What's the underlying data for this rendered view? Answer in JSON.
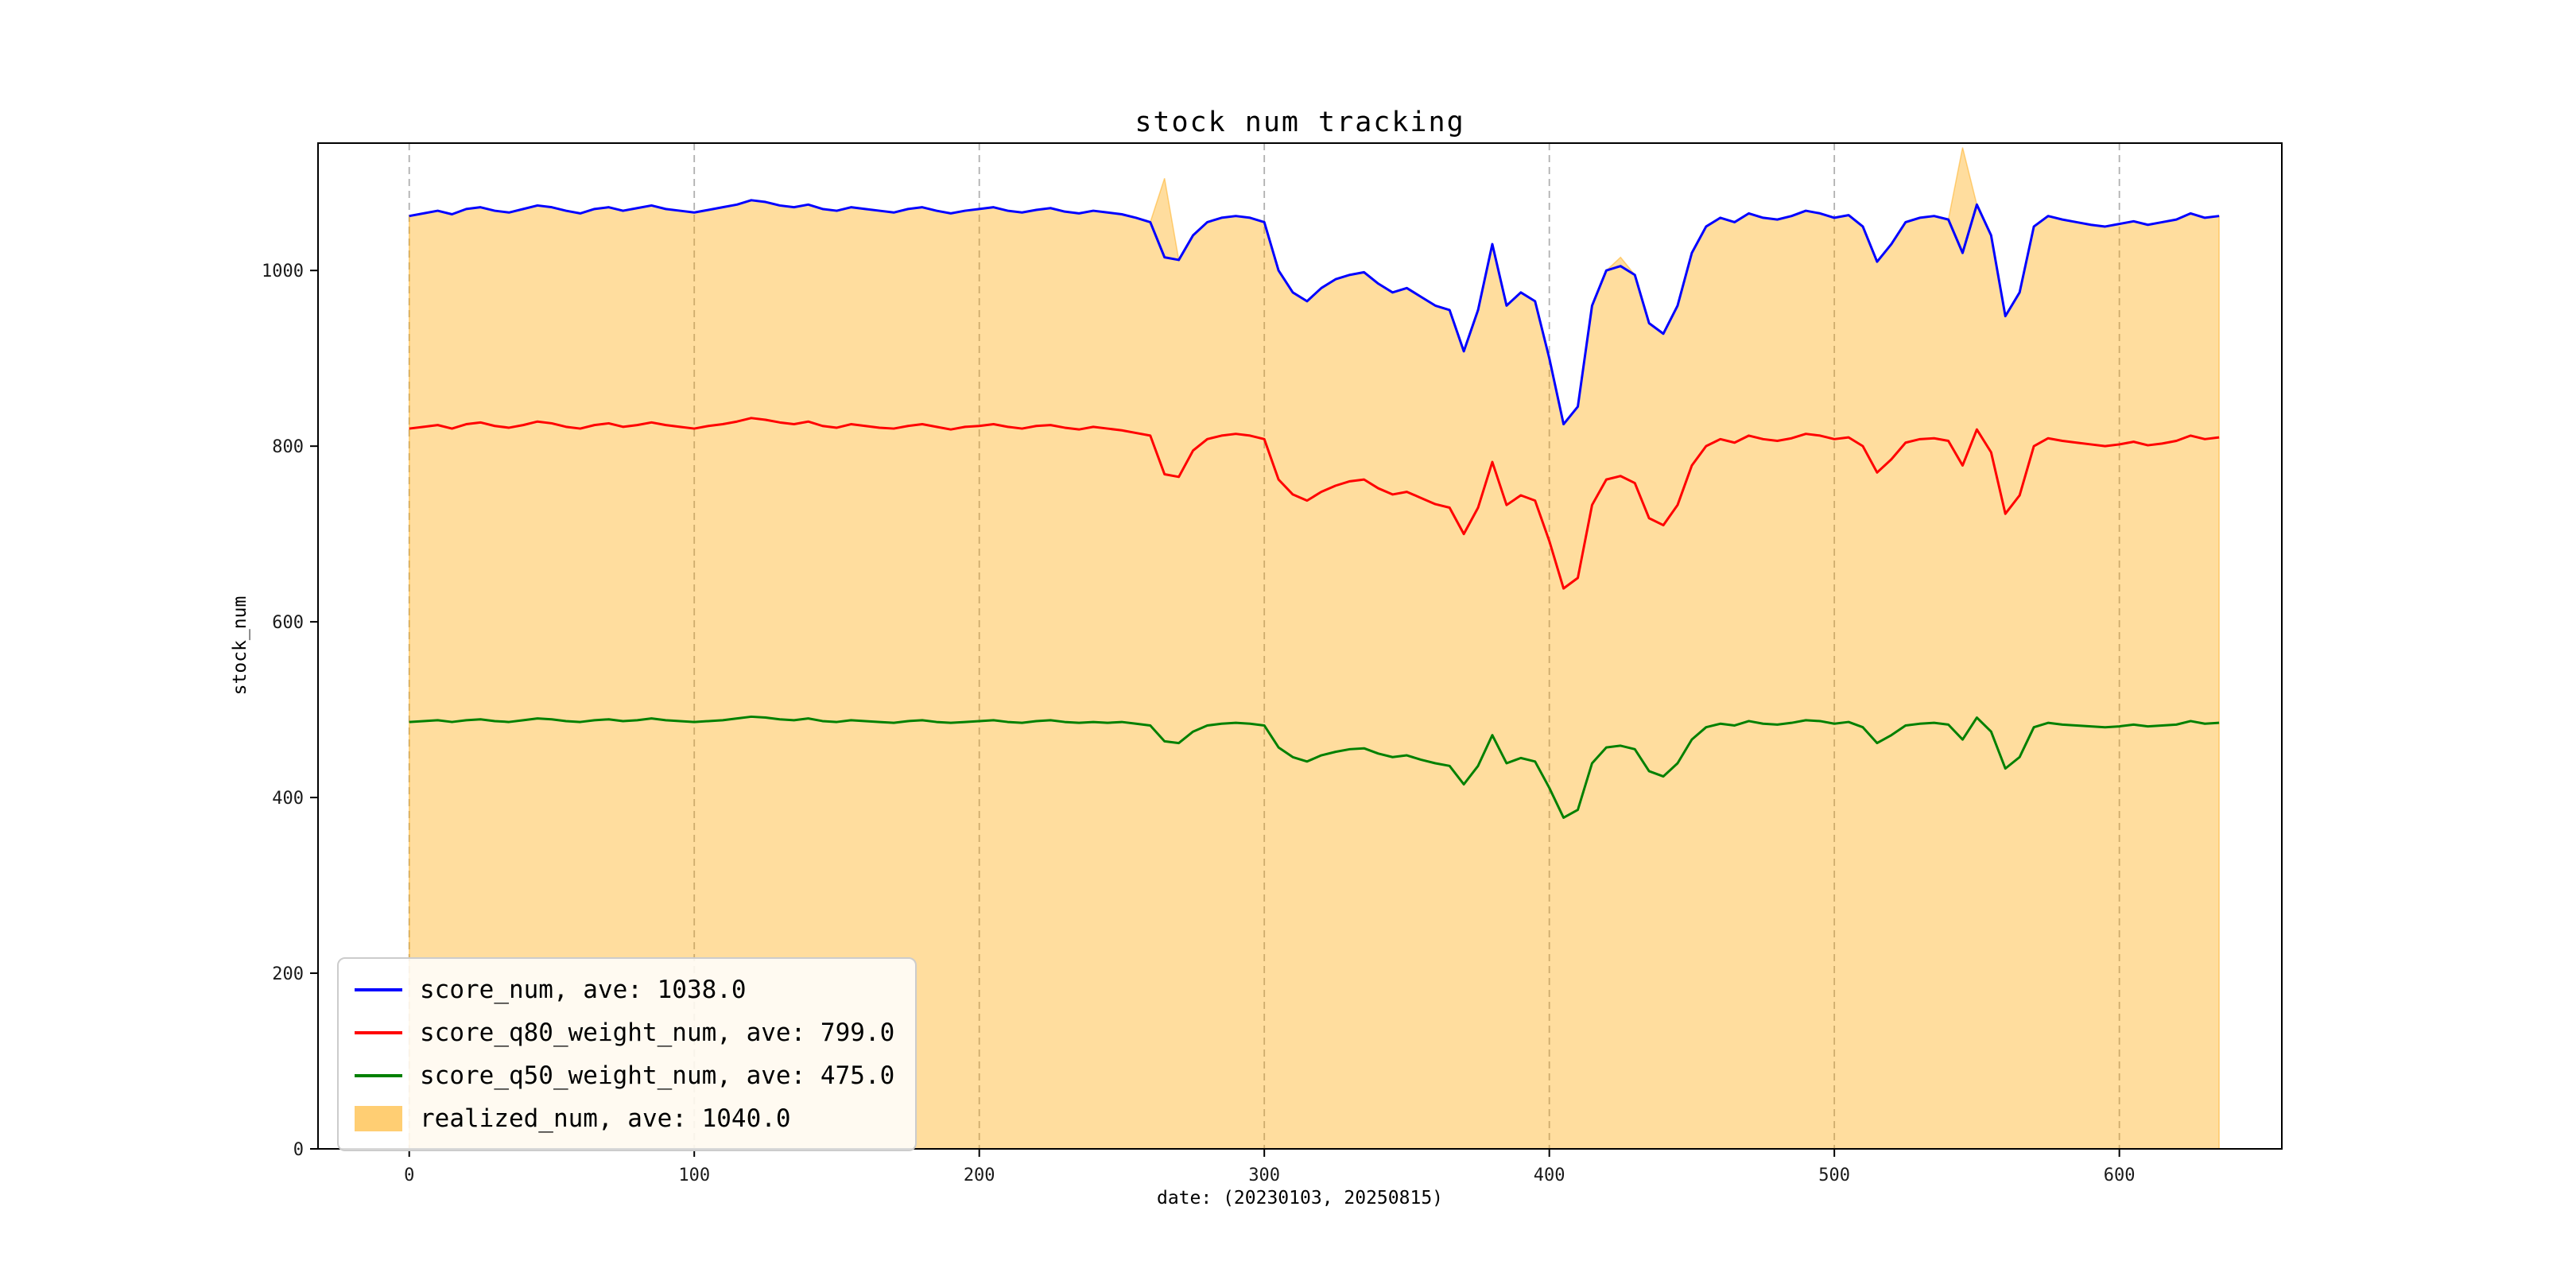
{
  "figure": {
    "background": "#ffffff"
  },
  "chart_data": {
    "type": "line",
    "title": "stock num tracking",
    "xlabel": "date: (20230103, 20250815)",
    "ylabel": "stock_num",
    "xlim": [
      -32,
      657
    ],
    "ylim": [
      0,
      1145
    ],
    "xticks": [
      0,
      100,
      200,
      300,
      400,
      500,
      600
    ],
    "yticks": [
      0,
      200,
      400,
      600,
      800,
      1000
    ],
    "grid": {
      "axis": "x",
      "style": "dashed",
      "color": "#b0b0b0"
    },
    "legend_position": "lower left",
    "x_start": 0,
    "x_step": 5,
    "series": [
      {
        "name": "score_num",
        "label": "score_num, ave: 1038.0",
        "color": "#0000ff",
        "kind": "line",
        "values": [
          1062,
          1065,
          1068,
          1064,
          1070,
          1072,
          1068,
          1066,
          1070,
          1074,
          1072,
          1068,
          1065,
          1070,
          1072,
          1068,
          1071,
          1074,
          1070,
          1068,
          1066,
          1069,
          1072,
          1075,
          1080,
          1078,
          1074,
          1072,
          1075,
          1070,
          1068,
          1072,
          1070,
          1068,
          1066,
          1070,
          1072,
          1068,
          1065,
          1068,
          1070,
          1072,
          1068,
          1066,
          1069,
          1071,
          1067,
          1065,
          1068,
          1066,
          1064,
          1060,
          1055,
          1015,
          1012,
          1040,
          1055,
          1060,
          1062,
          1060,
          1055,
          1000,
          975,
          965,
          980,
          990,
          995,
          998,
          985,
          975,
          980,
          970,
          960,
          955,
          908,
          955,
          1030,
          960,
          975,
          965,
          900,
          825,
          845,
          960,
          1000,
          1005,
          995,
          940,
          928,
          960,
          1020,
          1050,
          1060,
          1055,
          1065,
          1060,
          1058,
          1062,
          1068,
          1065,
          1060,
          1063,
          1050,
          1010,
          1030,
          1055,
          1060,
          1062,
          1058,
          1020,
          1075,
          1040,
          948,
          975,
          1050,
          1062,
          1058,
          1055,
          1052,
          1050,
          1053,
          1056,
          1052,
          1055,
          1058,
          1065,
          1060,
          1062
        ]
      },
      {
        "name": "score_q80_weight_num",
        "label": "score_q80_weight_num, ave: 799.0",
        "color": "#ff0000",
        "kind": "line",
        "values": [
          820,
          822,
          824,
          820,
          825,
          827,
          823,
          821,
          824,
          828,
          826,
          822,
          820,
          824,
          826,
          822,
          824,
          827,
          824,
          822,
          820,
          823,
          825,
          828,
          832,
          830,
          827,
          825,
          828,
          823,
          821,
          825,
          823,
          821,
          820,
          823,
          825,
          822,
          819,
          822,
          823,
          825,
          822,
          820,
          823,
          824,
          821,
          819,
          822,
          820,
          818,
          815,
          812,
          768,
          765,
          795,
          808,
          812,
          814,
          812,
          808,
          762,
          745,
          738,
          748,
          755,
          760,
          762,
          752,
          745,
          748,
          741,
          734,
          730,
          700,
          730,
          782,
          733,
          744,
          738,
          692,
          638,
          650,
          733,
          762,
          766,
          758,
          718,
          710,
          733,
          778,
          800,
          808,
          804,
          812,
          808,
          806,
          809,
          814,
          812,
          808,
          810,
          800,
          770,
          785,
          804,
          808,
          809,
          806,
          778,
          819,
          793,
          723,
          744,
          800,
          809,
          806,
          804,
          802,
          800,
          802,
          805,
          801,
          803,
          806,
          812,
          808,
          810
        ]
      },
      {
        "name": "score_q50_weight_num",
        "label": "score_q50_weight_num, ave: 475.0",
        "color": "#008000",
        "kind": "line",
        "values": [
          486,
          487,
          488,
          486,
          488,
          489,
          487,
          486,
          488,
          490,
          489,
          487,
          486,
          488,
          489,
          487,
          488,
          490,
          488,
          487,
          486,
          487,
          488,
          490,
          492,
          491,
          489,
          488,
          490,
          487,
          486,
          488,
          487,
          486,
          485,
          487,
          488,
          486,
          485,
          486,
          487,
          488,
          486,
          485,
          487,
          488,
          486,
          485,
          486,
          485,
          486,
          484,
          482,
          464,
          462,
          475,
          482,
          484,
          485,
          484,
          482,
          457,
          446,
          441,
          448,
          452,
          455,
          456,
          450,
          446,
          448,
          443,
          439,
          436,
          415,
          436,
          471,
          439,
          445,
          441,
          411,
          377,
          386,
          439,
          457,
          459,
          455,
          430,
          424,
          439,
          466,
          480,
          484,
          482,
          487,
          484,
          483,
          485,
          488,
          487,
          484,
          486,
          480,
          462,
          471,
          482,
          484,
          485,
          483,
          466,
          491,
          475,
          433,
          446,
          480,
          485,
          483,
          482,
          481,
          480,
          481,
          483,
          481,
          482,
          483,
          487,
          484,
          485
        ]
      },
      {
        "name": "realized_num",
        "label": "realized_num, ave: 1040.0",
        "color": "#ffa500",
        "kind": "area",
        "opacity": 0.38,
        "values": [
          1062,
          1065,
          1068,
          1064,
          1070,
          1072,
          1068,
          1066,
          1070,
          1074,
          1072,
          1068,
          1065,
          1070,
          1072,
          1068,
          1071,
          1074,
          1070,
          1068,
          1066,
          1069,
          1072,
          1075,
          1080,
          1078,
          1074,
          1072,
          1075,
          1070,
          1068,
          1072,
          1070,
          1068,
          1066,
          1070,
          1072,
          1068,
          1065,
          1068,
          1070,
          1072,
          1068,
          1066,
          1069,
          1071,
          1067,
          1065,
          1068,
          1066,
          1064,
          1060,
          1055,
          1105,
          1012,
          1040,
          1055,
          1060,
          1062,
          1060,
          1055,
          1000,
          975,
          965,
          980,
          990,
          995,
          998,
          985,
          975,
          980,
          970,
          960,
          955,
          908,
          955,
          1030,
          960,
          975,
          965,
          900,
          825,
          845,
          960,
          1000,
          1015,
          995,
          940,
          928,
          960,
          1020,
          1050,
          1060,
          1055,
          1065,
          1060,
          1058,
          1062,
          1068,
          1065,
          1060,
          1063,
          1050,
          1010,
          1030,
          1055,
          1060,
          1062,
          1058,
          1140,
          1075,
          1040,
          948,
          975,
          1050,
          1062,
          1058,
          1055,
          1052,
          1050,
          1053,
          1056,
          1052,
          1055,
          1058,
          1065,
          1060,
          1062
        ]
      }
    ]
  }
}
